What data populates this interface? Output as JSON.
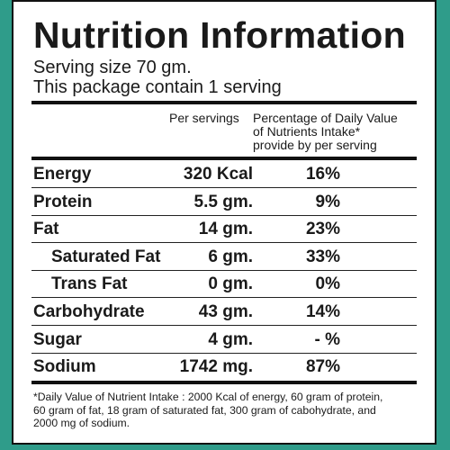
{
  "header": {
    "title": "Nutrition Information",
    "serving_size": "Serving size 70 gm.",
    "servings_per_package": "This package contain 1 serving"
  },
  "table": {
    "amount_header": "Per servings",
    "daily_value_header": [
      "Percentage of Daily Value",
      "of Nutrients Intake*",
      "provide by per serving"
    ],
    "rows": [
      {
        "nutrient": "Energy",
        "amount": "320 Kcal",
        "daily_value": "16%",
        "indent": false
      },
      {
        "nutrient": "Protein",
        "amount": "5.5 gm.",
        "daily_value": "9%",
        "indent": false
      },
      {
        "nutrient": "Fat",
        "amount": "14 gm.",
        "daily_value": "23%",
        "indent": false
      },
      {
        "nutrient": "Saturated Fat",
        "amount": "6 gm.",
        "daily_value": "33%",
        "indent": true
      },
      {
        "nutrient": "Trans Fat",
        "amount": "0 gm.",
        "daily_value": "0%",
        "indent": true
      },
      {
        "nutrient": "Carbohydrate",
        "amount": "43 gm.",
        "daily_value": "14%",
        "indent": false
      },
      {
        "nutrient": "Sugar",
        "amount": "4 gm.",
        "daily_value": "- %",
        "indent": false
      },
      {
        "nutrient": "Sodium",
        "amount": "1742 mg.",
        "daily_value": "87%",
        "indent": false
      }
    ]
  },
  "footnote": [
    "*Daily Value of Nutrient Intake : 2000 Kcal of energy, 60 gram of protein,",
    "60 gram of fat, 18 gram of saturated fat, 300 gram of cabohydrate, and",
    "2000 mg of sodium."
  ]
}
